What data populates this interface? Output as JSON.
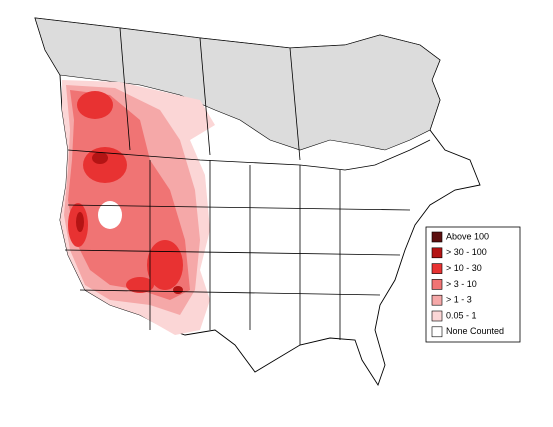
{
  "legend": {
    "items": [
      {
        "label": "Above 100",
        "color": "#5c1010"
      },
      {
        "label": "> 30 - 100",
        "color": "#b41414"
      },
      {
        "label": "> 10 - 30",
        "color": "#e83232"
      },
      {
        "label": "> 3 - 10",
        "color": "#f07474"
      },
      {
        "label": "> 1 - 3",
        "color": "#f5a8a8"
      },
      {
        "label": "0.05 - 1",
        "color": "#fbd6d6"
      },
      {
        "label": "None Counted",
        "color": "#ffffff"
      }
    ]
  }
}
